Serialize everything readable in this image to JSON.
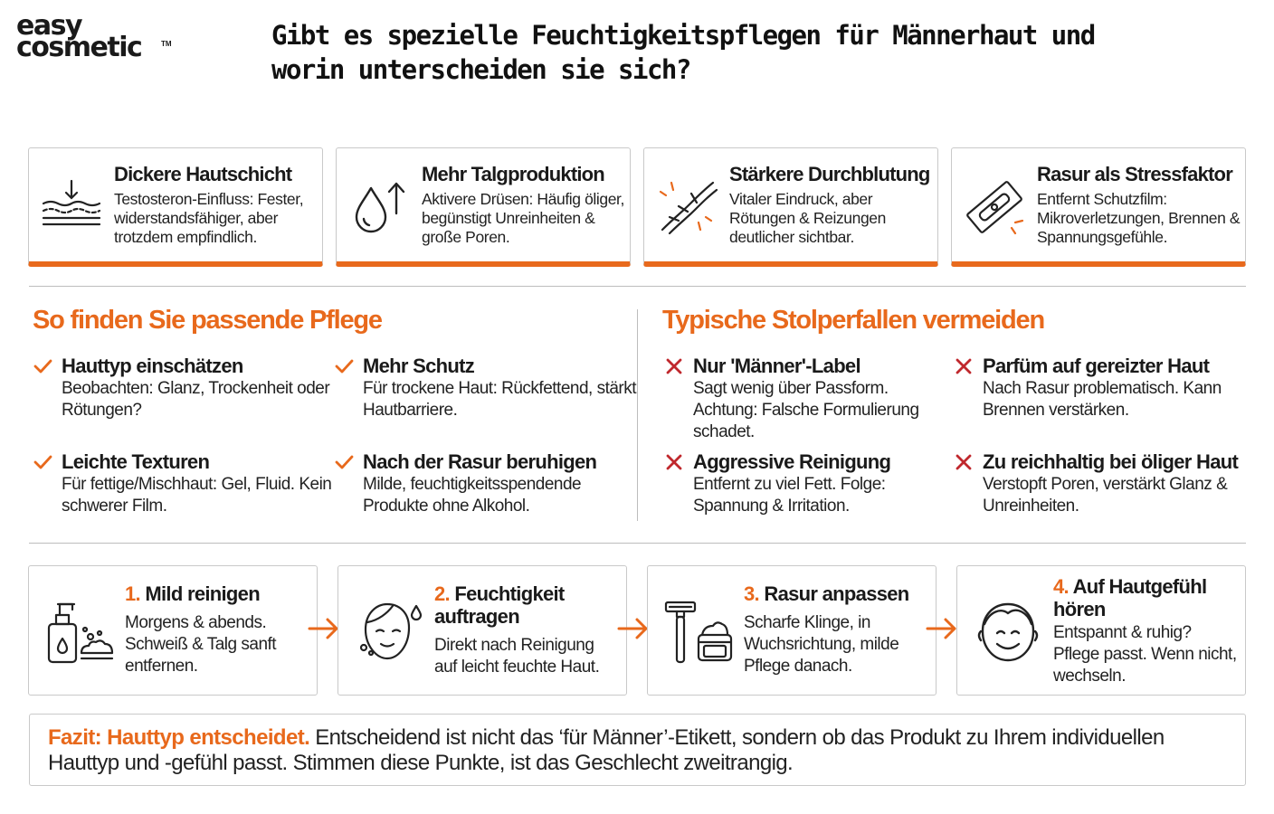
{
  "logo": {
    "line1": "easy",
    "line2": "cosmetic",
    "tm": "TM"
  },
  "title": "Gibt es spezielle Feuchtigkeitspflegen für Männerhaut und worin unterscheiden sie sich?",
  "accent_color": "#e8691c",
  "cards": [
    {
      "icon": "skin-layers-icon",
      "title": "Dickere Hautschicht",
      "text": "Testosteron-Einfluss: Fester, widerstandsfähiger, aber trotzdem empfindlich."
    },
    {
      "icon": "oil-drop-icon",
      "title": "Mehr Talgproduktion",
      "text": "Aktivere Drüsen: Häufig öliger, begünstigt Unreinheiten & große Poren."
    },
    {
      "icon": "blood-vessel-icon",
      "title": "Stärkere Durchblutung",
      "text": "Vitaler Eindruck, aber Rötungen & Reizungen deutlicher sichtbar."
    },
    {
      "icon": "razor-blade-icon",
      "title": "Rasur als Stressfaktor",
      "text": "Entfernt Schutzfilm: Mikroverletzungen, Brennen & Spannungsgefühle."
    }
  ],
  "left_section": {
    "title": "So finden Sie passende Pflege",
    "items": [
      {
        "title": "Hauttyp einschätzen",
        "text": "Beobachten: Glanz, Trockenheit oder Rötungen?"
      },
      {
        "title": "Mehr Schutz",
        "text": "Für trockene Haut: Rückfettend, stärkt Hautbarriere."
      },
      {
        "title": "Leichte Texturen",
        "text": "Für fettige/Mischhaut: Gel, Fluid. Kein schwerer Film."
      },
      {
        "title": "Nach der Rasur beruhigen",
        "text": "Milde, feuchtigkeitsspendende Produkte ohne Alkohol."
      }
    ]
  },
  "right_section": {
    "title": "Typische Stolperfallen vermeiden",
    "items": [
      {
        "title": "Nur 'Männer'-Label",
        "text": "Sagt wenig über Passform. Achtung: Falsche Formulierung schadet."
      },
      {
        "title": "Parfüm auf gereizter Haut",
        "text": "Nach Rasur problematisch. Kann Brennen verstärken."
      },
      {
        "title": "Aggressive Reinigung",
        "text": "Entfernt zu viel Fett. Folge: Spannung & Irritation."
      },
      {
        "title": "Zu reichhaltig bei öliger Haut",
        "text": "Verstopft Poren, verstärkt Glanz & Unreinheiten."
      }
    ]
  },
  "steps": [
    {
      "icon": "soap-dispenser-icon",
      "num": "1.",
      "title": "Mild reinigen",
      "text": "Morgens & abends. Schweiß & Talg sanft entfernen."
    },
    {
      "icon": "face-moisture-icon",
      "num": "2.",
      "title": "Feuchtigkeit auftragen",
      "text": "Direkt nach Reinigung auf leicht feuchte Haut."
    },
    {
      "icon": "razor-cream-icon",
      "num": "3.",
      "title": "Rasur anpassen",
      "text": "Scharfe Klinge, in Wuchsrichtung, milde Pflege danach."
    },
    {
      "icon": "happy-face-icon",
      "num": "4.",
      "title": "Auf Hautgefühl hören",
      "text": "Entspannt & ruhig? Pflege passt. Wenn nicht, wechseln."
    }
  ],
  "fazit": {
    "highlight": "Fazit: Hauttyp entscheidet.",
    "text": " Entscheidend ist nicht das ‘für Männer’-Etikett, sondern ob das Produkt zu Ihrem individuellen Hauttyp und -gefühl passt. Stimmen diese Punkte, ist das Geschlecht zweitrangig."
  }
}
